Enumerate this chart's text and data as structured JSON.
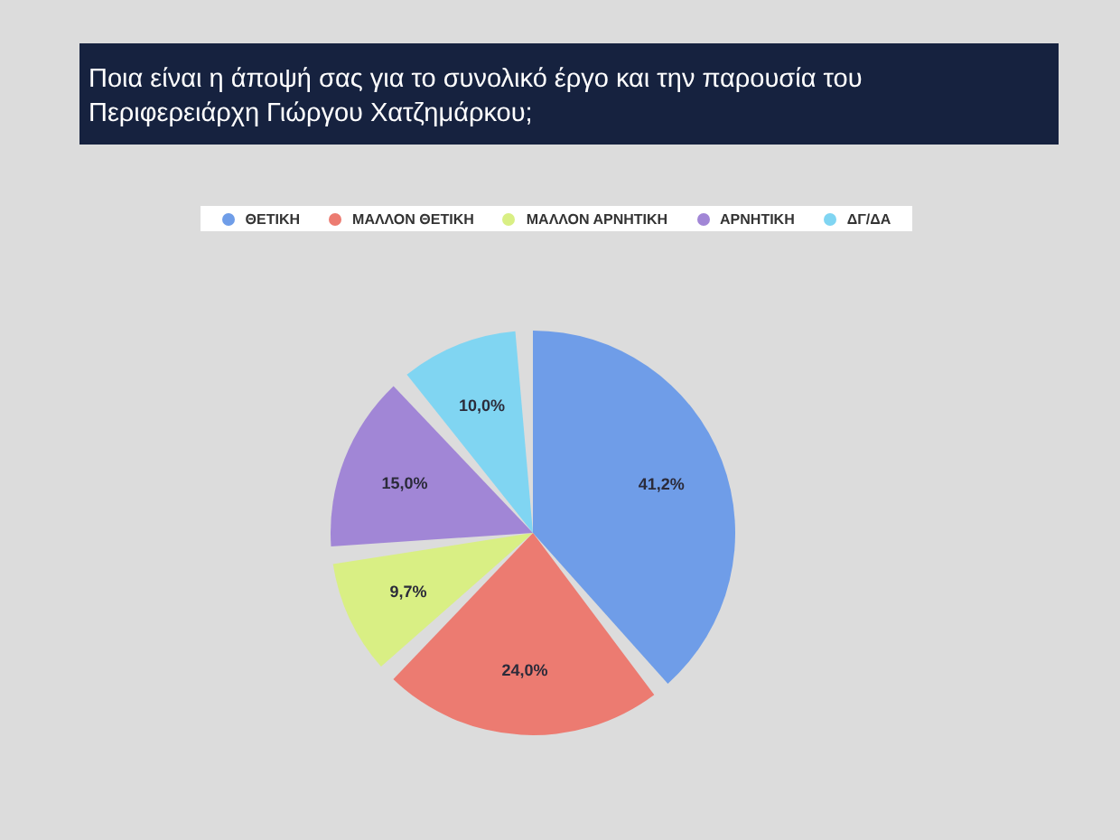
{
  "chart_data": {
    "type": "pie",
    "title": "Ποια είναι η άποψή σας για το συνολικό έργο και την παρουσία του Περιφερειάρχη Γιώργου Χατζημάρκου;",
    "categories": [
      "ΘΕΤΙΚΗ",
      "ΜΑΛΛΟΝ ΘΕΤΙΚΗ",
      "ΜΑΛΛΟΝ ΑΡΝΗΤΙΚΗ",
      "ΑΡΝΗΤΙΚΗ",
      "ΔΓ/ΔΑ"
    ],
    "values": [
      41.2,
      24.0,
      9.7,
      15.0,
      10.0
    ],
    "value_labels": [
      "41,2%",
      "24,0%",
      "9,7%",
      "15,0%",
      "10,0%"
    ],
    "colors": [
      "#6f9de8",
      "#ec7b71",
      "#d9ef84",
      "#a186d6",
      "#80d5f2"
    ],
    "legend": "top"
  }
}
